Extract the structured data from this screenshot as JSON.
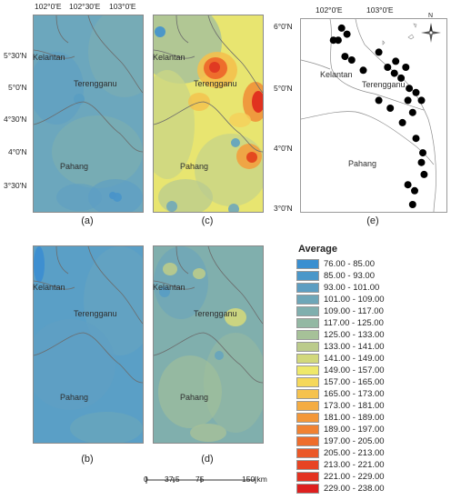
{
  "coords": {
    "top_lon": [
      "102°0'E",
      "102°30'E",
      "103°0'E"
    ],
    "left_lat": [
      "5°30'N",
      "5°0'N",
      "4°30'N",
      "4°0'N",
      "3°30'N"
    ],
    "e_lon": [
      "102°0'E",
      "103°0'E"
    ],
    "e_lat": [
      "6°0'N",
      "5°0'N",
      "4°0'N",
      "3°0'N"
    ]
  },
  "states": {
    "kelantan": "Kelantan",
    "terengganu": "Terengganu",
    "pahang": "Pahang"
  },
  "panels": [
    {
      "id": "a",
      "label": "(a)"
    },
    {
      "id": "c",
      "label": "(c)"
    },
    {
      "id": "e",
      "label": "(e)"
    },
    {
      "id": "b",
      "label": "(b)"
    },
    {
      "id": "d",
      "label": "(d)"
    }
  ],
  "legend": {
    "title": "Average",
    "items": [
      {
        "label": "76.00 - 85.00",
        "color": "#3a8fd0"
      },
      {
        "label": "85.00 - 93.00",
        "color": "#4a97c9"
      },
      {
        "label": "93.00 - 101.00",
        "color": "#5d9ec2"
      },
      {
        "label": "101.00 - 109.00",
        "color": "#6ea6b8"
      },
      {
        "label": "109.00 - 117.00",
        "color": "#80afae"
      },
      {
        "label": "117.00 - 125.00",
        "color": "#93b8a3"
      },
      {
        "label": "125.00 - 133.00",
        "color": "#a6c198"
      },
      {
        "label": "133.00 - 141.00",
        "color": "#bbcb8b"
      },
      {
        "label": "141.00 - 149.00",
        "color": "#d2d87c"
      },
      {
        "label": "149.00 - 157.00",
        "color": "#eee86a"
      },
      {
        "label": "157.00 - 165.00",
        "color": "#f5d85a"
      },
      {
        "label": "165.00 - 173.00",
        "color": "#f5c24d"
      },
      {
        "label": "173.00 - 181.00",
        "color": "#f4ac42"
      },
      {
        "label": "181.00 - 189.00",
        "color": "#f39739"
      },
      {
        "label": "189.00 - 197.00",
        "color": "#f18232"
      },
      {
        "label": "197.00 - 205.00",
        "color": "#ee6d2c"
      },
      {
        "label": "205.00 - 213.00",
        "color": "#eb5827"
      },
      {
        "label": "213.00 - 221.00",
        "color": "#e74423"
      },
      {
        "label": "221.00 - 229.00",
        "color": "#e33120"
      },
      {
        "label": "229.00 - 238.00",
        "color": "#de1f1e"
      }
    ]
  },
  "scale_bar": {
    "ticks": [
      "0",
      "37.5",
      "75",
      "150 km"
    ]
  },
  "north_arrow_label": "N",
  "stations": [
    {
      "lon": 102.0,
      "lat": 5.95
    },
    {
      "lon": 102.08,
      "lat": 5.85
    },
    {
      "lon": 101.95,
      "lat": 5.75
    },
    {
      "lon": 101.88,
      "lat": 5.75
    },
    {
      "lon": 102.05,
      "lat": 5.48
    },
    {
      "lon": 102.15,
      "lat": 5.42
    },
    {
      "lon": 102.32,
      "lat": 5.25
    },
    {
      "lon": 102.55,
      "lat": 5.55
    },
    {
      "lon": 102.68,
      "lat": 5.3
    },
    {
      "lon": 102.78,
      "lat": 5.2
    },
    {
      "lon": 102.8,
      "lat": 5.4
    },
    {
      "lon": 102.88,
      "lat": 5.12
    },
    {
      "lon": 102.95,
      "lat": 5.3
    },
    {
      "lon": 103.0,
      "lat": 4.95
    },
    {
      "lon": 103.1,
      "lat": 4.88
    },
    {
      "lon": 103.18,
      "lat": 4.75
    },
    {
      "lon": 102.98,
      "lat": 4.75
    },
    {
      "lon": 102.55,
      "lat": 4.75
    },
    {
      "lon": 102.72,
      "lat": 4.62
    },
    {
      "lon": 103.05,
      "lat": 4.55
    },
    {
      "lon": 102.9,
      "lat": 4.38
    },
    {
      "lon": 103.1,
      "lat": 4.12
    },
    {
      "lon": 103.2,
      "lat": 3.88
    },
    {
      "lon": 103.18,
      "lat": 3.72
    },
    {
      "lon": 103.22,
      "lat": 3.52
    },
    {
      "lon": 102.98,
      "lat": 3.35
    },
    {
      "lon": 103.08,
      "lat": 3.25
    },
    {
      "lon": 103.05,
      "lat": 3.02
    }
  ]
}
